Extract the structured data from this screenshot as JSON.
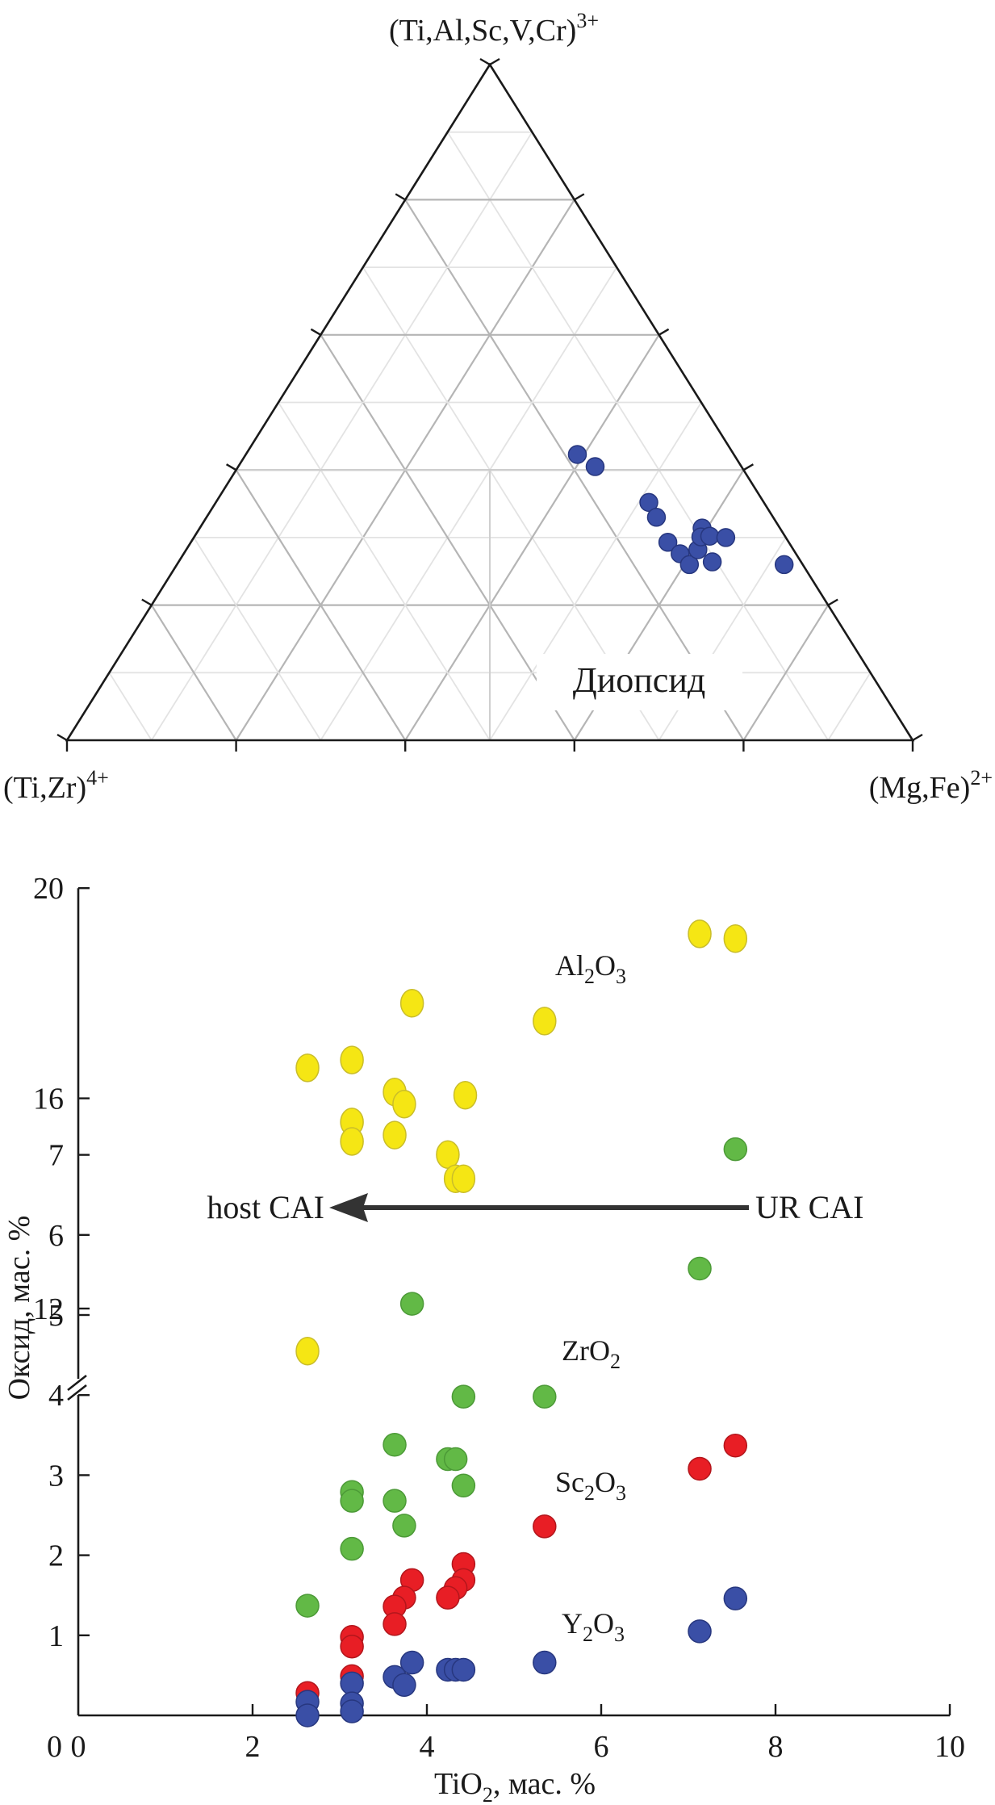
{
  "chart_data": [
    {
      "type": "ternary-scatter",
      "title": "",
      "apex_labels": {
        "top": {
          "base": "(Ti,Al,Sc,V,Cr)",
          "sup": "3+"
        },
        "left": {
          "base": "(Ti,Zr)",
          "sup": "4+"
        },
        "right": {
          "base": "(Mg,Fe)",
          "sup": "2+"
        }
      },
      "grid_divisions": 10,
      "major_tick_divisions": 5,
      "region_label": "Диопсид",
      "region_boundaries": "three lines from the centroid to the points (top=0.4, left=0.6), (top=0.4, right=0.6) and the base midpoint",
      "marker_color": "#3a4fa6",
      "points_top_left_right": [
        [
          0.423,
          0.185,
          0.392
        ],
        [
          0.405,
          0.173,
          0.422
        ],
        [
          0.352,
          0.136,
          0.512
        ],
        [
          0.33,
          0.138,
          0.532
        ],
        [
          0.293,
          0.143,
          0.564
        ],
        [
          0.276,
          0.137,
          0.587
        ],
        [
          0.26,
          0.134,
          0.606
        ],
        [
          0.282,
          0.113,
          0.605
        ],
        [
          0.314,
          0.092,
          0.594
        ],
        [
          0.301,
          0.1,
          0.599
        ],
        [
          0.302,
          0.089,
          0.609
        ],
        [
          0.3,
          0.071,
          0.629
        ],
        [
          0.264,
          0.105,
          0.631
        ],
        [
          0.26,
          0.022,
          0.718
        ]
      ]
    },
    {
      "type": "scatter",
      "title": "",
      "xlabel": {
        "base": "TiO",
        "sub": "2",
        "rest": ", мас. %"
      },
      "ylabel": "Оксид, мас. %",
      "xlim": [
        0,
        10
      ],
      "xticks": [
        "0",
        "2",
        "4",
        "6",
        "8",
        "10"
      ],
      "y_broken_axis": true,
      "ylim_lower": [
        0,
        7.5
      ],
      "ylim_upper": [
        11,
        20
      ],
      "yticks_lower": [
        "1",
        "2",
        "3",
        "4",
        "5",
        "6",
        "7"
      ],
      "yticks_lower_zero": "0",
      "yticks_upper": [
        "12",
        "16",
        "20"
      ],
      "grid": false,
      "annotation_arrow": {
        "from_label": "UR CAI",
        "to_label": "host CAI",
        "direction": "right-to-left"
      },
      "series": [
        {
          "name": "Al2O3",
          "label": {
            "base": "Al",
            "sub1": "2",
            "mid": "O",
            "sub2": "3"
          },
          "color": "#f5e614",
          "axis": "upper",
          "points": [
            [
              2.63,
              16.58
            ],
            [
              3.14,
              16.73
            ],
            [
              3.14,
              15.55
            ],
            [
              3.14,
              15.18
            ],
            [
              3.63,
              16.12
            ],
            [
              3.63,
              15.3
            ],
            [
              3.74,
              15.89
            ],
            [
              3.83,
              17.81
            ],
            [
              4.24,
              14.93
            ],
            [
              4.33,
              14.47
            ],
            [
              4.42,
              14.47
            ],
            [
              4.44,
              16.06
            ],
            [
              5.35,
              17.47
            ],
            [
              7.13,
              19.13
            ],
            [
              7.54,
              19.04
            ],
            [
              2.63,
              11.19
            ]
          ]
        },
        {
          "name": "ZrO2",
          "label": {
            "base": "ZrO",
            "sub1": "2"
          },
          "color": "#62b946",
          "axis": "lower",
          "points": [
            [
              7.54,
              7.07
            ],
            [
              7.13,
              5.58
            ],
            [
              3.83,
              5.14
            ],
            [
              4.42,
              3.98
            ],
            [
              5.35,
              3.98
            ],
            [
              3.63,
              3.38
            ],
            [
              4.24,
              3.2
            ],
            [
              4.33,
              3.2
            ],
            [
              4.42,
              2.87
            ],
            [
              3.14,
              2.79
            ],
            [
              3.14,
              2.68
            ],
            [
              3.63,
              2.68
            ],
            [
              3.74,
              2.37
            ],
            [
              3.14,
              2.08
            ],
            [
              2.63,
              1.37
            ]
          ]
        },
        {
          "name": "Sc2O3",
          "label": {
            "base": "Sc",
            "sub1": "2",
            "mid": "O",
            "sub2": "3"
          },
          "color": "#e81e25",
          "axis": "lower",
          "points": [
            [
              7.54,
              3.37
            ],
            [
              7.13,
              3.08
            ],
            [
              5.35,
              2.36
            ],
            [
              4.42,
              1.89
            ],
            [
              4.42,
              1.69
            ],
            [
              4.33,
              1.59
            ],
            [
              4.24,
              1.47
            ],
            [
              3.83,
              1.69
            ],
            [
              3.74,
              1.47
            ],
            [
              3.63,
              1.36
            ],
            [
              3.63,
              1.14
            ],
            [
              3.14,
              0.98
            ],
            [
              3.14,
              0.86
            ],
            [
              3.14,
              0.49
            ],
            [
              2.63,
              0.28
            ]
          ]
        },
        {
          "name": "Y2O3",
          "label": {
            "base": "Y",
            "sub1": "2",
            "mid": "O",
            "sub2": "3"
          },
          "color": "#3a4fa6",
          "axis": "lower",
          "points": [
            [
              7.54,
              1.46
            ],
            [
              7.13,
              1.05
            ],
            [
              5.35,
              0.66
            ],
            [
              3.83,
              0.66
            ],
            [
              3.63,
              0.48
            ],
            [
              3.74,
              0.38
            ],
            [
              4.24,
              0.57
            ],
            [
              4.33,
              0.57
            ],
            [
              4.42,
              0.57
            ],
            [
              3.14,
              0.4
            ],
            [
              3.14,
              0.15
            ],
            [
              3.14,
              0.05
            ],
            [
              2.63,
              0.17
            ],
            [
              2.63,
              0.0
            ]
          ]
        }
      ]
    }
  ]
}
